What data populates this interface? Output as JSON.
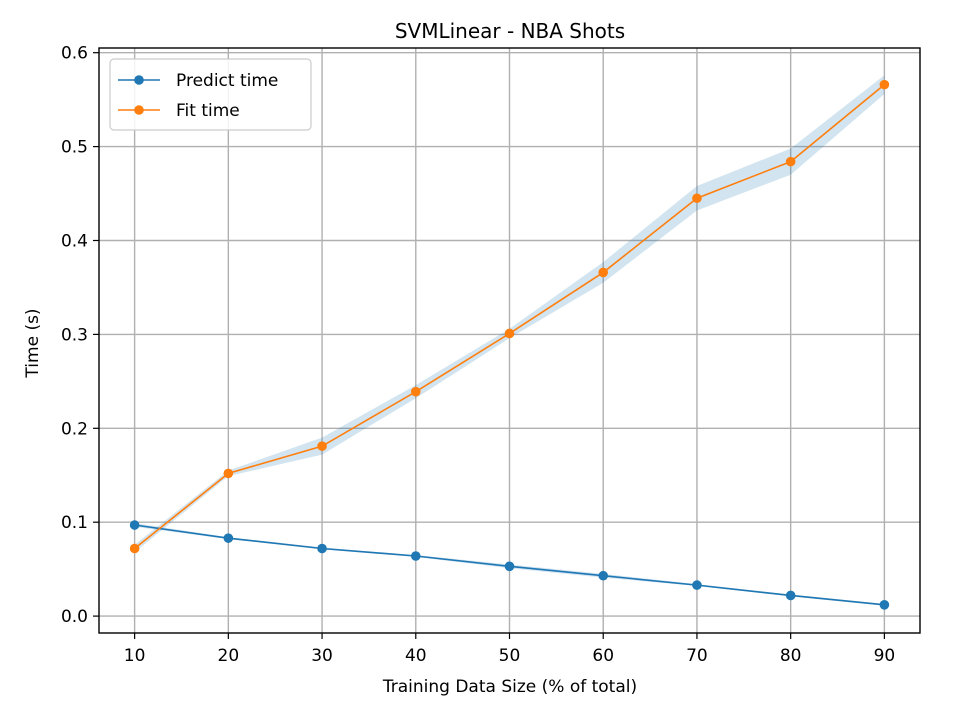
{
  "chart_data": {
    "type": "line",
    "title": "SVMLinear - NBA Shots",
    "xlabel": "Training Data Size (% of total)",
    "ylabel": "Time (s)",
    "x": [
      10,
      20,
      30,
      40,
      50,
      60,
      70,
      80,
      90
    ],
    "xticks": [
      "10",
      "20",
      "30",
      "40",
      "50",
      "60",
      "70",
      "80",
      "90"
    ],
    "yticks": [
      "0.0",
      "0.1",
      "0.2",
      "0.3",
      "0.4",
      "0.5",
      "0.6"
    ],
    "xlim": [
      6.2,
      93.8
    ],
    "ylim": [
      -0.018,
      0.605
    ],
    "grid": true,
    "legend_position": "top-left",
    "series": [
      {
        "name": "Predict time",
        "color": "#1f77b4",
        "values": [
          0.097,
          0.083,
          0.072,
          0.064,
          0.053,
          0.043,
          0.033,
          0.022,
          0.012
        ],
        "band": [
          [
            0.095,
            0.099
          ],
          [
            0.082,
            0.084
          ],
          [
            0.071,
            0.073
          ],
          [
            0.063,
            0.065
          ],
          [
            0.051,
            0.055
          ],
          [
            0.041,
            0.045
          ],
          [
            0.032,
            0.034
          ],
          [
            0.021,
            0.023
          ],
          [
            0.011,
            0.013
          ]
        ]
      },
      {
        "name": "Fit time",
        "color": "#ff7f0e",
        "values": [
          0.072,
          0.152,
          0.181,
          0.239,
          0.301,
          0.366,
          0.445,
          0.484,
          0.566
        ],
        "band": [
          [
            0.068,
            0.076
          ],
          [
            0.149,
            0.155
          ],
          [
            0.172,
            0.19
          ],
          [
            0.232,
            0.246
          ],
          [
            0.296,
            0.306
          ],
          [
            0.355,
            0.377
          ],
          [
            0.432,
            0.458
          ],
          [
            0.47,
            0.498
          ],
          [
            0.556,
            0.576
          ]
        ]
      }
    ],
    "band_color": "#1f77b4"
  }
}
